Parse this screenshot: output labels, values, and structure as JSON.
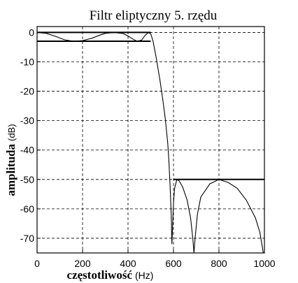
{
  "chart_data": {
    "type": "line",
    "title": "Filtr eliptyczny 5. rzędu",
    "xlabel": "częstotliwość",
    "xlabel_unit": "(Hz)",
    "ylabel": "amplituda",
    "ylabel_unit": "(dB)",
    "xlim": [
      0,
      1000
    ],
    "ylim": [
      -75,
      2
    ],
    "x_ticks": [
      0,
      200,
      400,
      600,
      800,
      1000
    ],
    "x_tick_labels": [
      "0",
      "200",
      "400",
      "600",
      "800",
      "1000"
    ],
    "y_ticks": [
      0,
      -10,
      -20,
      -30,
      -40,
      -50,
      -60,
      -70
    ],
    "y_tick_labels": [
      "0",
      "-10",
      "-20",
      "-30",
      "-40",
      "-50",
      "-60",
      "-70"
    ],
    "grid": true,
    "grid_style": "dashed",
    "reference_lines": [
      {
        "y": 0,
        "x_start": 0,
        "x_end": 500
      },
      {
        "y": -3,
        "x_start": 0,
        "x_end": 500
      },
      {
        "y": -50,
        "x_start": 600,
        "x_end": 1000
      }
    ],
    "series": [
      {
        "x": [
          0,
          40,
          80,
          120,
          160,
          200,
          240,
          280,
          300,
          340,
          380,
          400,
          420,
          440,
          460,
          475,
          490,
          500,
          510,
          525,
          540,
          555,
          565,
          575,
          580,
          585,
          590,
          593,
          596,
          600,
          605,
          615,
          625,
          640,
          660,
          675,
          685,
          690,
          695,
          705,
          720,
          760,
          800,
          840,
          880,
          920,
          960,
          980,
          995
        ],
        "y": [
          0,
          -0.3,
          -1.3,
          -2.5,
          -3,
          -2.8,
          -2,
          -0.8,
          -0.3,
          0,
          -0.4,
          -1.2,
          -2.2,
          -3,
          -2.6,
          -1,
          0,
          -0.5,
          -3,
          -9,
          -16,
          -24,
          -30,
          -38,
          -44,
          -52,
          -62,
          -72,
          -66,
          -58,
          -53,
          -50,
          -50.5,
          -52.5,
          -57,
          -63,
          -70,
          -75,
          -70,
          -62,
          -56,
          -51.5,
          -50,
          -51,
          -53,
          -57,
          -63,
          -68,
          -75
        ],
        "color": "#000000"
      }
    ]
  }
}
